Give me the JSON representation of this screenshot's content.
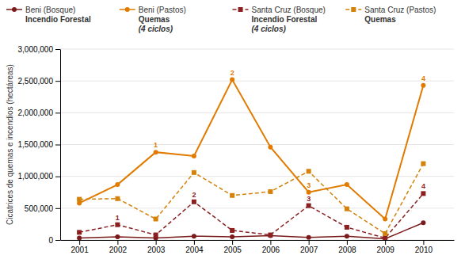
{
  "chart_data": {
    "type": "line",
    "y_label": "Cicatrices de quemas e incendios (hectáreas)",
    "x": [
      2001,
      2002,
      2003,
      2004,
      2005,
      2006,
      2007,
      2008,
      2009,
      2010
    ],
    "xlim": [
      2000.5,
      2010.8
    ],
    "xticks": [
      2001,
      2002,
      2003,
      2004,
      2005,
      2006,
      2007,
      2008,
      2009,
      2010
    ],
    "ylim": [
      0,
      3000000
    ],
    "yticks": [
      0,
      {
        "value": 500000,
        "label": "500,000"
      },
      {
        "value": 1000000,
        "label": "1,000,000"
      },
      {
        "value": 1500000,
        "label": "1,500,000"
      },
      {
        "value": 2000000,
        "label": "2,000,000"
      },
      {
        "value": 2500000,
        "label": "2,500,000"
      },
      {
        "value": 3000000,
        "label": "3,000,000"
      }
    ],
    "grid": true,
    "legend": "top",
    "series": [
      {
        "name": "Beni (Bosque)",
        "color": "#7B1A1A",
        "marker": "circle",
        "line_style": "solid",
        "legend_notes": [
          "Incendio Forestal"
        ],
        "values": [
          30000,
          50000,
          30000,
          60000,
          50000,
          70000,
          40000,
          60000,
          20000,
          270000
        ]
      },
      {
        "name": "Beni (Pastos)",
        "color": "#E07B00",
        "marker": "circle",
        "line_style": "solid",
        "legend_notes": [
          "Quemas",
          "(4 ciclos)"
        ],
        "values": [
          580000,
          870000,
          1380000,
          1320000,
          2520000,
          1460000,
          750000,
          870000,
          330000,
          2430000
        ],
        "annotations": [
          {
            "x": 2003,
            "text": "1"
          },
          {
            "x": 2005,
            "text": "2"
          },
          {
            "x": 2007,
            "text": "3"
          },
          {
            "x": 2010,
            "text": "4"
          }
        ]
      },
      {
        "name": "Santa Cruz (Bosque)",
        "color": "#8B2020",
        "marker": "square",
        "line_style": "dashed",
        "legend_notes": [
          "Incendio Forestal",
          "(4 ciclos)"
        ],
        "values": [
          120000,
          240000,
          80000,
          600000,
          150000,
          80000,
          540000,
          200000,
          30000,
          730000
        ],
        "annotations": [
          {
            "x": 2002,
            "text": "1"
          },
          {
            "x": 2004,
            "text": "2"
          },
          {
            "x": 2007,
            "text": "3"
          },
          {
            "x": 2010,
            "text": "4"
          }
        ]
      },
      {
        "name": "Santa Cruz (Pastos)",
        "color": "#D4820A",
        "marker": "square",
        "line_style": "dashed",
        "legend_notes": [
          "Quemas"
        ],
        "values": [
          640000,
          650000,
          330000,
          1060000,
          700000,
          760000,
          1080000,
          490000,
          100000,
          1200000
        ]
      }
    ]
  }
}
